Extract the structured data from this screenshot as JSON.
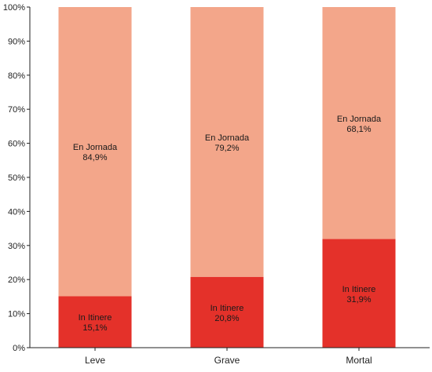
{
  "chart_data": {
    "type": "bar",
    "stacked": true,
    "categories": [
      "Leve",
      "Grave",
      "Mortal"
    ],
    "series": [
      {
        "name": "In Itinere",
        "values": [
          15.1,
          20.8,
          31.9
        ],
        "labels": [
          "15,1%",
          "20,8%",
          "31,9%"
        ],
        "color": "#e4312a"
      },
      {
        "name": "En Jornada",
        "values": [
          84.9,
          79.2,
          68.1
        ],
        "labels": [
          "84,9%",
          "79,2%",
          "68,1%"
        ],
        "color": "#f3a68a"
      }
    ],
    "ylim": [
      0,
      100
    ],
    "yticks": [
      "0%",
      "10%",
      "20%",
      "30%",
      "40%",
      "50%",
      "60%",
      "70%",
      "80%",
      "90%",
      "100%"
    ],
    "grid": false,
    "title": "",
    "xlabel": "",
    "ylabel": ""
  }
}
